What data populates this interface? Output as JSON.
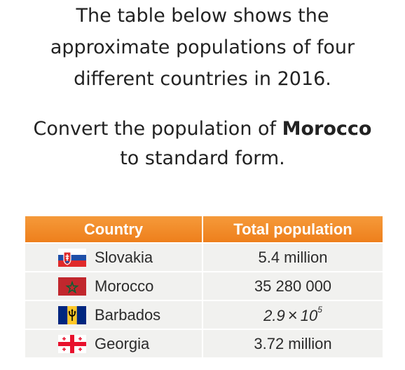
{
  "intro": {
    "line1": "The table below shows the",
    "line2": "approximate populations of four",
    "line3": "different countries in 2016."
  },
  "task": {
    "line1_before": "Convert the population of ",
    "line1_country": "Morocco",
    "line2": "to standard form."
  },
  "table": {
    "headers": [
      "Country",
      "Total population"
    ],
    "rows": [
      {
        "country": "Slovakia",
        "flag": "slovakia-flag-icon",
        "population": "5.4 million"
      },
      {
        "country": "Morocco",
        "flag": "morocco-flag-icon",
        "population": "35 280 000"
      },
      {
        "country": "Barbados",
        "flag": "barbados-flag-icon",
        "population_mantissa": "2.9",
        "population_times": "×",
        "population_base": "10",
        "population_exponent": "5"
      },
      {
        "country": "Georgia",
        "flag": "georgia-flag-icon",
        "population": "3.72 million"
      }
    ]
  },
  "colors": {
    "header_orange": "#f08a2a",
    "cell_grey": "#f1f1ef"
  }
}
